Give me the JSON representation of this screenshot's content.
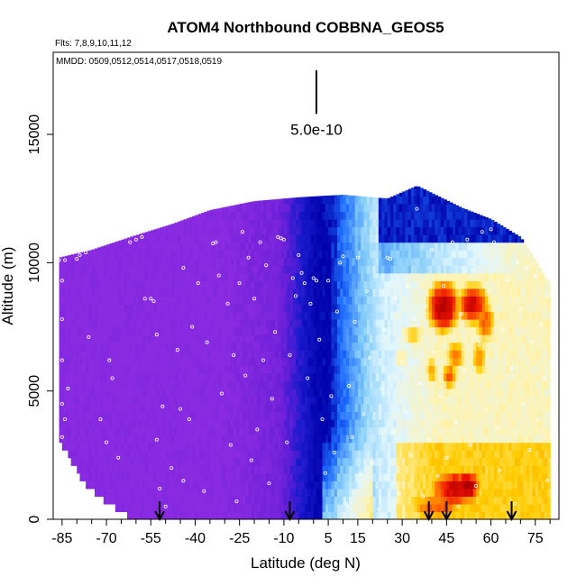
{
  "chart_data": {
    "type": "heatmap",
    "title": "ATOM4 Northbound COBBNA_GEOS5",
    "notes": [
      "Flts: 7,8,9,10,11,12",
      "MMDD: 0509,0512,0514,0517,0518,0519"
    ],
    "xlabel": "Latitude (deg N)",
    "ylabel": "Altitude (m)",
    "xlim": [
      -88,
      83
    ],
    "ylim": [
      0,
      18200
    ],
    "x_ticks": [
      -85,
      -70,
      -55,
      -40,
      -25,
      -10,
      5,
      15,
      30,
      45,
      60,
      75
    ],
    "x_tick_labels": [
      "-85",
      "-70",
      "-55",
      "-40",
      "-25",
      "-10",
      "5",
      "15",
      "30",
      "45",
      "60",
      "75"
    ],
    "x_minor_ticks": [
      -80,
      -75,
      -65,
      -60,
      -50,
      -45,
      -35,
      -30,
      -20,
      -15,
      -5,
      0,
      10,
      20,
      25,
      35,
      40,
      50,
      55,
      65,
      70,
      80
    ],
    "y_ticks": [
      0,
      5000,
      10000,
      15000
    ],
    "y_tick_labels": [
      "0",
      "5000",
      "10000",
      "15000"
    ],
    "scale_bar": {
      "label": "5.0e-10",
      "x": 1,
      "y_bottom": 15800,
      "y_top": 17500
    },
    "arrows_latitude": [
      -52,
      -8,
      39,
      45,
      67
    ],
    "colormap": [
      "#8a2be2",
      "#6a1fd8",
      "#1a1acd",
      "#0000aa",
      "#1e6cff",
      "#87cefa",
      "#e0f6ff",
      "#fff3b0",
      "#ffcc00",
      "#ff7a00",
      "#ee1100",
      "#aa0000"
    ],
    "envelope": [
      {
        "lat": -86,
        "top": 10200
      },
      {
        "lat": -75,
        "top": 10500
      },
      {
        "lat": -62,
        "top": 11000
      },
      {
        "lat": -48,
        "top": 11500
      },
      {
        "lat": -35,
        "top": 12050
      },
      {
        "lat": -20,
        "top": 12400
      },
      {
        "lat": -5,
        "top": 12550
      },
      {
        "lat": 10,
        "top": 12650
      },
      {
        "lat": 25,
        "top": 12500
      },
      {
        "lat": 35,
        "top": 13000
      },
      {
        "lat": 50,
        "top": 12150
      },
      {
        "lat": 60,
        "top": 11700
      },
      {
        "lat": 70,
        "top": 11000
      },
      {
        "lat": 74,
        "top": 10300
      },
      {
        "lat": 79,
        "top": 9300
      }
    ],
    "low_edge": [
      {
        "lat": -86,
        "bottom": 3200
      },
      {
        "lat": -83,
        "bottom": 2600
      },
      {
        "lat": -80,
        "bottom": 2000
      },
      {
        "lat": -77,
        "bottom": 1500
      },
      {
        "lat": -73,
        "bottom": 1050
      },
      {
        "lat": -68,
        "bottom": 700
      },
      {
        "lat": -63,
        "bottom": 350
      },
      {
        "lat": -60,
        "bottom": 0
      }
    ],
    "high_anomalies": [
      {
        "lat": 44,
        "alt": 8300,
        "w": 6,
        "h": 1100,
        "value": 1.0
      },
      {
        "lat": 54,
        "alt": 8400,
        "w": 6,
        "h": 900,
        "value": 0.95
      },
      {
        "lat": 58,
        "alt": 7700,
        "w": 4,
        "h": 900,
        "value": 0.85
      },
      {
        "lat": 34,
        "alt": 7200,
        "w": 6,
        "h": 700,
        "value": 0.7
      },
      {
        "lat": 48,
        "alt": 6400,
        "w": 4,
        "h": 800,
        "value": 0.8
      },
      {
        "lat": 40,
        "alt": 5800,
        "w": 3,
        "h": 800,
        "value": 0.75
      },
      {
        "lat": 46,
        "alt": 5600,
        "w": 3,
        "h": 600,
        "value": 0.85
      },
      {
        "lat": 56,
        "alt": 6300,
        "w": 3,
        "h": 900,
        "value": 0.8
      },
      {
        "lat": 30,
        "alt": 6300,
        "w": 4,
        "h": 600,
        "value": 0.65
      },
      {
        "lat": 48,
        "alt": 1200,
        "w": 10,
        "h": 900,
        "value": 0.95
      },
      {
        "lat": 52,
        "alt": 1300,
        "w": 5,
        "h": 700,
        "value": 1.0
      },
      {
        "lat": 42,
        "alt": 500,
        "w": 12,
        "h": 700,
        "value": 0.85
      },
      {
        "lat": 37,
        "alt": 2100,
        "w": 10,
        "h": 800,
        "value": 0.7
      }
    ],
    "flight_points": [
      [
        -86,
        10100
      ],
      [
        -85,
        9300
      ],
      [
        -85,
        7800
      ],
      [
        -85,
        6200
      ],
      [
        -85,
        4500
      ],
      [
        -85,
        3200
      ],
      [
        -84,
        3900
      ],
      [
        -84,
        10100
      ],
      [
        -83,
        5100
      ],
      [
        -80,
        10150
      ],
      [
        -79,
        10300
      ],
      [
        -77,
        10400
      ],
      [
        -76,
        7100
      ],
      [
        -72,
        3900
      ],
      [
        -70,
        3000
      ],
      [
        -69,
        6200
      ],
      [
        -68,
        5500
      ],
      [
        -66,
        2400
      ],
      [
        -62,
        10800
      ],
      [
        -60,
        10900
      ],
      [
        -58,
        11000
      ],
      [
        -57,
        8600
      ],
      [
        -55,
        8600
      ],
      [
        -54,
        8500
      ],
      [
        -53,
        7200
      ],
      [
        -53,
        3100
      ],
      [
        -52,
        1200
      ],
      [
        -51,
        4400
      ],
      [
        -50,
        500
      ],
      [
        -48,
        2000
      ],
      [
        -46,
        6600
      ],
      [
        -45,
        4300
      ],
      [
        -44,
        9800
      ],
      [
        -44,
        1500
      ],
      [
        -42,
        3900
      ],
      [
        -41,
        7500
      ],
      [
        -39,
        9200
      ],
      [
        -37,
        1100
      ],
      [
        -36,
        6900
      ],
      [
        -34,
        10750
      ],
      [
        -33,
        10800
      ],
      [
        -32,
        9500
      ],
      [
        -31,
        4900
      ],
      [
        -29,
        8400
      ],
      [
        -28,
        2900
      ],
      [
        -27,
        6400
      ],
      [
        -26,
        700
      ],
      [
        -25,
        9200
      ],
      [
        -24,
        11200
      ],
      [
        -23,
        5600
      ],
      [
        -22,
        10200
      ],
      [
        -21,
        2300
      ],
      [
        -20,
        8600
      ],
      [
        -19,
        3500
      ],
      [
        -18,
        10800
      ],
      [
        -17,
        6200
      ],
      [
        -16,
        9900
      ],
      [
        -15,
        1400
      ],
      [
        -14,
        4700
      ],
      [
        -13,
        7300
      ],
      [
        -12,
        11000
      ],
      [
        -11,
        10950
      ],
      [
        -10,
        10900
      ],
      [
        -9,
        3000
      ],
      [
        -8,
        6400
      ],
      [
        -7,
        9400
      ],
      [
        -6,
        8700
      ],
      [
        -5,
        10300
      ],
      [
        -4,
        9600
      ],
      [
        -3,
        9200
      ],
      [
        -2,
        5500
      ],
      [
        -1,
        8400
      ],
      [
        0,
        9400
      ],
      [
        1,
        9300
      ],
      [
        2,
        7000
      ],
      [
        3,
        3900
      ],
      [
        4,
        1800
      ],
      [
        5,
        9300
      ],
      [
        6,
        4800
      ],
      [
        7,
        2600
      ],
      [
        8,
        8100
      ],
      [
        9,
        10000
      ],
      [
        10,
        10250
      ],
      [
        11,
        600
      ],
      [
        12,
        5200
      ],
      [
        13,
        3200
      ],
      [
        14,
        7700
      ],
      [
        15,
        10200
      ],
      [
        16,
        1800
      ],
      [
        17,
        4100
      ],
      [
        18,
        8900
      ],
      [
        19,
        6300
      ],
      [
        20,
        2200
      ],
      [
        21,
        9500
      ],
      [
        22,
        400
      ],
      [
        23,
        5100
      ],
      [
        24,
        7400
      ],
      [
        25,
        10200
      ],
      [
        26,
        10150
      ],
      [
        27,
        3400
      ],
      [
        28,
        8600
      ],
      [
        29,
        1000
      ],
      [
        30,
        6100
      ],
      [
        31,
        4200
      ],
      [
        32,
        9100
      ],
      [
        33,
        2500
      ],
      [
        34,
        7800
      ],
      [
        35,
        12100
      ],
      [
        36,
        5300
      ],
      [
        37,
        900
      ],
      [
        38,
        8300
      ],
      [
        39,
        3100
      ],
      [
        40,
        10500
      ],
      [
        41,
        6500
      ],
      [
        42,
        1700
      ],
      [
        43,
        4800
      ],
      [
        44,
        9100
      ],
      [
        45,
        2400
      ],
      [
        46,
        7200
      ],
      [
        47,
        10800
      ],
      [
        48,
        3800
      ],
      [
        49,
        500
      ],
      [
        50,
        8000
      ],
      [
        51,
        5800
      ],
      [
        52,
        10900
      ],
      [
        53,
        2900
      ],
      [
        54,
        9700
      ],
      [
        55,
        1300
      ],
      [
        56,
        6800
      ],
      [
        57,
        11200
      ],
      [
        58,
        4300
      ],
      [
        59,
        8900
      ],
      [
        60,
        11300
      ],
      [
        61,
        10800
      ],
      [
        62,
        3600
      ],
      [
        63,
        1900
      ],
      [
        64,
        7400
      ],
      [
        65,
        11600
      ],
      [
        66,
        9300
      ],
      [
        67,
        5900
      ],
      [
        68,
        600
      ],
      [
        69,
        10000
      ],
      [
        70,
        8200
      ],
      [
        71,
        4500
      ],
      [
        72,
        9800
      ],
      [
        73,
        2700
      ],
      [
        74,
        6900
      ],
      [
        75,
        9500
      ],
      [
        76,
        3900
      ],
      [
        77,
        7600
      ],
      [
        78,
        5500
      ],
      [
        79,
        1500
      ],
      [
        79,
        8700
      ]
    ]
  }
}
